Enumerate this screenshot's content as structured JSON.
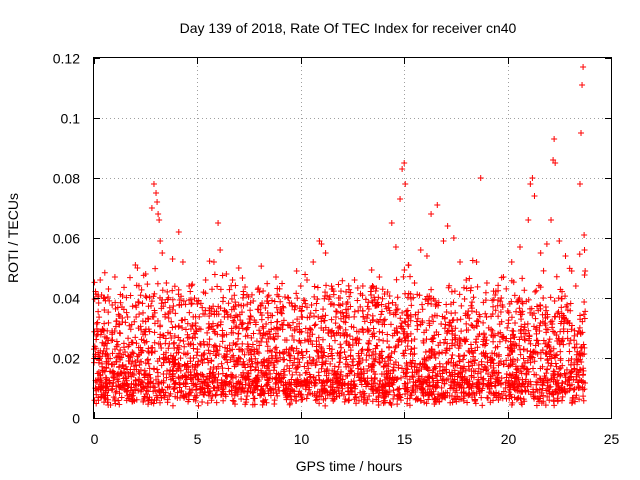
{
  "chart_data": {
    "type": "scatter",
    "title": "Day 139 of 2018, Rate Of TEC Index for receiver cn40",
    "xlabel": "GPS time / hours",
    "ylabel": "ROTI / TECUs",
    "xlim": [
      0,
      25
    ],
    "ylim": [
      0,
      0.12
    ],
    "x_ticks": [
      0,
      5,
      10,
      15,
      20,
      25
    ],
    "x_tick_labels": [
      "0",
      "5",
      "10",
      "15",
      "20",
      "25"
    ],
    "y_ticks": [
      0,
      0.02,
      0.04,
      0.06,
      0.08,
      0.1,
      0.12
    ],
    "y_tick_labels": [
      "0",
      "0.02",
      "0.04",
      "0.06",
      "0.08",
      "0.1",
      "0.12"
    ],
    "grid": true,
    "marker": "+",
    "color": "#ff0000",
    "series": [
      {
        "name": "ROTI",
        "note": "dense band roughly 0.005-0.045 TECU/s across 0-23.7 h; representative sample plus visible peaks",
        "points": [
          [
            0.1,
            0.012
          ],
          [
            0.2,
            0.041
          ],
          [
            0.3,
            0.046
          ],
          [
            0.5,
            0.036
          ],
          [
            0.7,
            0.043
          ],
          [
            1.0,
            0.029
          ],
          [
            1.2,
            0.034
          ],
          [
            1.5,
            0.022
          ],
          [
            1.8,
            0.018
          ],
          [
            2.0,
            0.051
          ],
          [
            2.1,
            0.05
          ],
          [
            2.5,
            0.048
          ],
          [
            2.8,
            0.07
          ],
          [
            2.9,
            0.078
          ],
          [
            3.0,
            0.075
          ],
          [
            3.05,
            0.072
          ],
          [
            3.1,
            0.068
          ],
          [
            3.15,
            0.066
          ],
          [
            3.2,
            0.059
          ],
          [
            3.3,
            0.055
          ],
          [
            3.5,
            0.045
          ],
          [
            3.8,
            0.053
          ],
          [
            4.1,
            0.062
          ],
          [
            4.3,
            0.052
          ],
          [
            4.6,
            0.044
          ],
          [
            5.0,
            0.038
          ],
          [
            5.4,
            0.046
          ],
          [
            5.8,
            0.052
          ],
          [
            6.0,
            0.065
          ],
          [
            6.1,
            0.056
          ],
          [
            6.4,
            0.048
          ],
          [
            6.7,
            0.046
          ],
          [
            7.0,
            0.05
          ],
          [
            7.4,
            0.041
          ],
          [
            7.7,
            0.039
          ],
          [
            8.0,
            0.042
          ],
          [
            8.4,
            0.035
          ],
          [
            8.8,
            0.047
          ],
          [
            9.0,
            0.03
          ],
          [
            9.4,
            0.04
          ],
          [
            9.8,
            0.049
          ],
          [
            10.0,
            0.044
          ],
          [
            10.3,
            0.046
          ],
          [
            10.6,
            0.052
          ],
          [
            10.9,
            0.059
          ],
          [
            11.0,
            0.058
          ],
          [
            11.2,
            0.055
          ],
          [
            11.5,
            0.043
          ],
          [
            11.9,
            0.04
          ],
          [
            12.2,
            0.038
          ],
          [
            12.6,
            0.046
          ],
          [
            13.0,
            0.044
          ],
          [
            13.4,
            0.041
          ],
          [
            13.8,
            0.047
          ],
          [
            14.2,
            0.042
          ],
          [
            14.4,
            0.065
          ],
          [
            14.6,
            0.057
          ],
          [
            14.8,
            0.073
          ],
          [
            14.9,
            0.083
          ],
          [
            15.0,
            0.085
          ],
          [
            15.05,
            0.078
          ],
          [
            15.2,
            0.051
          ],
          [
            15.5,
            0.045
          ],
          [
            15.8,
            0.056
          ],
          [
            16.1,
            0.054
          ],
          [
            16.3,
            0.068
          ],
          [
            16.6,
            0.071
          ],
          [
            16.9,
            0.059
          ],
          [
            17.1,
            0.064
          ],
          [
            17.4,
            0.06
          ],
          [
            17.7,
            0.052
          ],
          [
            18.0,
            0.046
          ],
          [
            18.5,
            0.052
          ],
          [
            18.7,
            0.08
          ],
          [
            19.0,
            0.045
          ],
          [
            19.4,
            0.041
          ],
          [
            19.8,
            0.047
          ],
          [
            20.2,
            0.052
          ],
          [
            20.6,
            0.057
          ],
          [
            21.0,
            0.066
          ],
          [
            21.1,
            0.078
          ],
          [
            21.2,
            0.08
          ],
          [
            21.3,
            0.074
          ],
          [
            21.6,
            0.055
          ],
          [
            21.9,
            0.058
          ],
          [
            22.1,
            0.066
          ],
          [
            22.2,
            0.086
          ],
          [
            22.25,
            0.093
          ],
          [
            22.3,
            0.085
          ],
          [
            22.5,
            0.059
          ],
          [
            22.8,
            0.054
          ],
          [
            23.1,
            0.049
          ],
          [
            23.3,
            0.044
          ],
          [
            23.5,
            0.078
          ],
          [
            23.55,
            0.095
          ],
          [
            23.6,
            0.111
          ],
          [
            23.65,
            0.117
          ],
          [
            23.7,
            0.061
          ],
          [
            23.72,
            0.056
          ],
          [
            23.75,
            0.049
          ]
        ]
      }
    ]
  }
}
